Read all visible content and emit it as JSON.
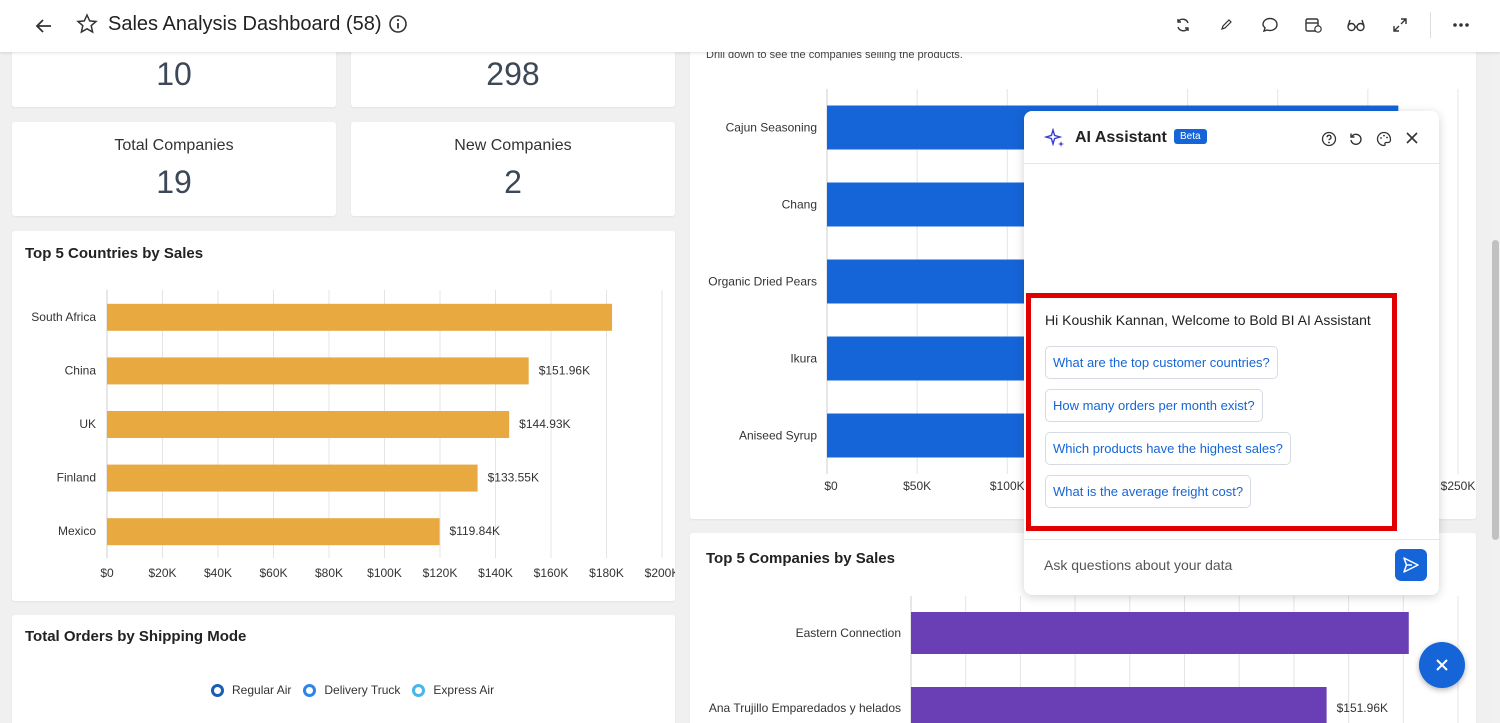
{
  "header": {
    "title": "Sales Analysis Dashboard (58)",
    "icons": [
      "back-arrow-icon",
      "star-icon",
      "info-icon",
      "refresh-icon",
      "edit-icon",
      "comment-icon",
      "schedule-icon",
      "view-icon",
      "fullscreen-icon",
      "more-icon"
    ]
  },
  "kpis": [
    {
      "label": "",
      "value": "10"
    },
    {
      "label": "",
      "value": "298"
    },
    {
      "label": "Total Companies",
      "value": "19"
    },
    {
      "label": "New Companies",
      "value": "2"
    }
  ],
  "countries_chart": {
    "title": "Top 5 Countries by Sales",
    "chart_data": {
      "type": "bar",
      "orientation": "horizontal",
      "categories": [
        "South Africa",
        "China",
        "UK",
        "Finland",
        "Mexico"
      ],
      "values": [
        182000,
        151960,
        144930,
        133550,
        119840
      ],
      "labels": [
        "",
        "$151.96K",
        "$144.93K",
        "$133.55K",
        "$119.84K"
      ],
      "xlim": [
        0,
        200000
      ],
      "ticks": [
        "$0",
        "$20K",
        "$40K",
        "$60K",
        "$80K",
        "$100K",
        "$120K",
        "$140K",
        "$160K",
        "$180K",
        "$200K"
      ],
      "color": "#e8a940"
    }
  },
  "products_chart": {
    "subtitle": "Drill down to see the companies selling the products.",
    "chart_data": {
      "type": "bar",
      "orientation": "horizontal",
      "categories": [
        "Cajun Seasoning",
        "Chang",
        "Organic Dried Pears",
        "Ikura",
        "Aniseed Syrup"
      ],
      "values": [
        249000,
        150000,
        150000,
        150000,
        150000
      ],
      "xlim": [
        0,
        275000
      ],
      "ticks": [
        "$0",
        "$50K",
        "$100K",
        "",
        "",
        "$250K"
      ],
      "color": "#1565d8"
    }
  },
  "companies_chart": {
    "title": "Top 5 Companies by Sales",
    "chart_data": {
      "type": "bar",
      "orientation": "horizontal",
      "categories": [
        "Eastern Connection",
        "Ana Trujillo Emparedados y helados"
      ],
      "values": [
        182000,
        151960
      ],
      "labels": [
        "",
        "$151.96K"
      ],
      "xlim": [
        0,
        200000
      ],
      "color": "#6a3fb5"
    }
  },
  "shipping_chart": {
    "title": "Total Orders by Shipping Mode",
    "legend": [
      "Regular Air",
      "Delivery Truck",
      "Express Air"
    ],
    "colors": [
      "#1a5fb4",
      "#2f84e8",
      "#48b6ea"
    ]
  },
  "ai_assistant": {
    "title": "AI Assistant",
    "badge": "Beta",
    "welcome": "Hi Koushik Kannan, Welcome to Bold BI AI Assistant",
    "suggestions": [
      "What are the top customer countries?",
      "How many orders per month exist?",
      "Which products have the highest sales?",
      "What is the average freight cost?"
    ],
    "input_placeholder": "Ask questions about your data",
    "accent": "#1565d8"
  }
}
